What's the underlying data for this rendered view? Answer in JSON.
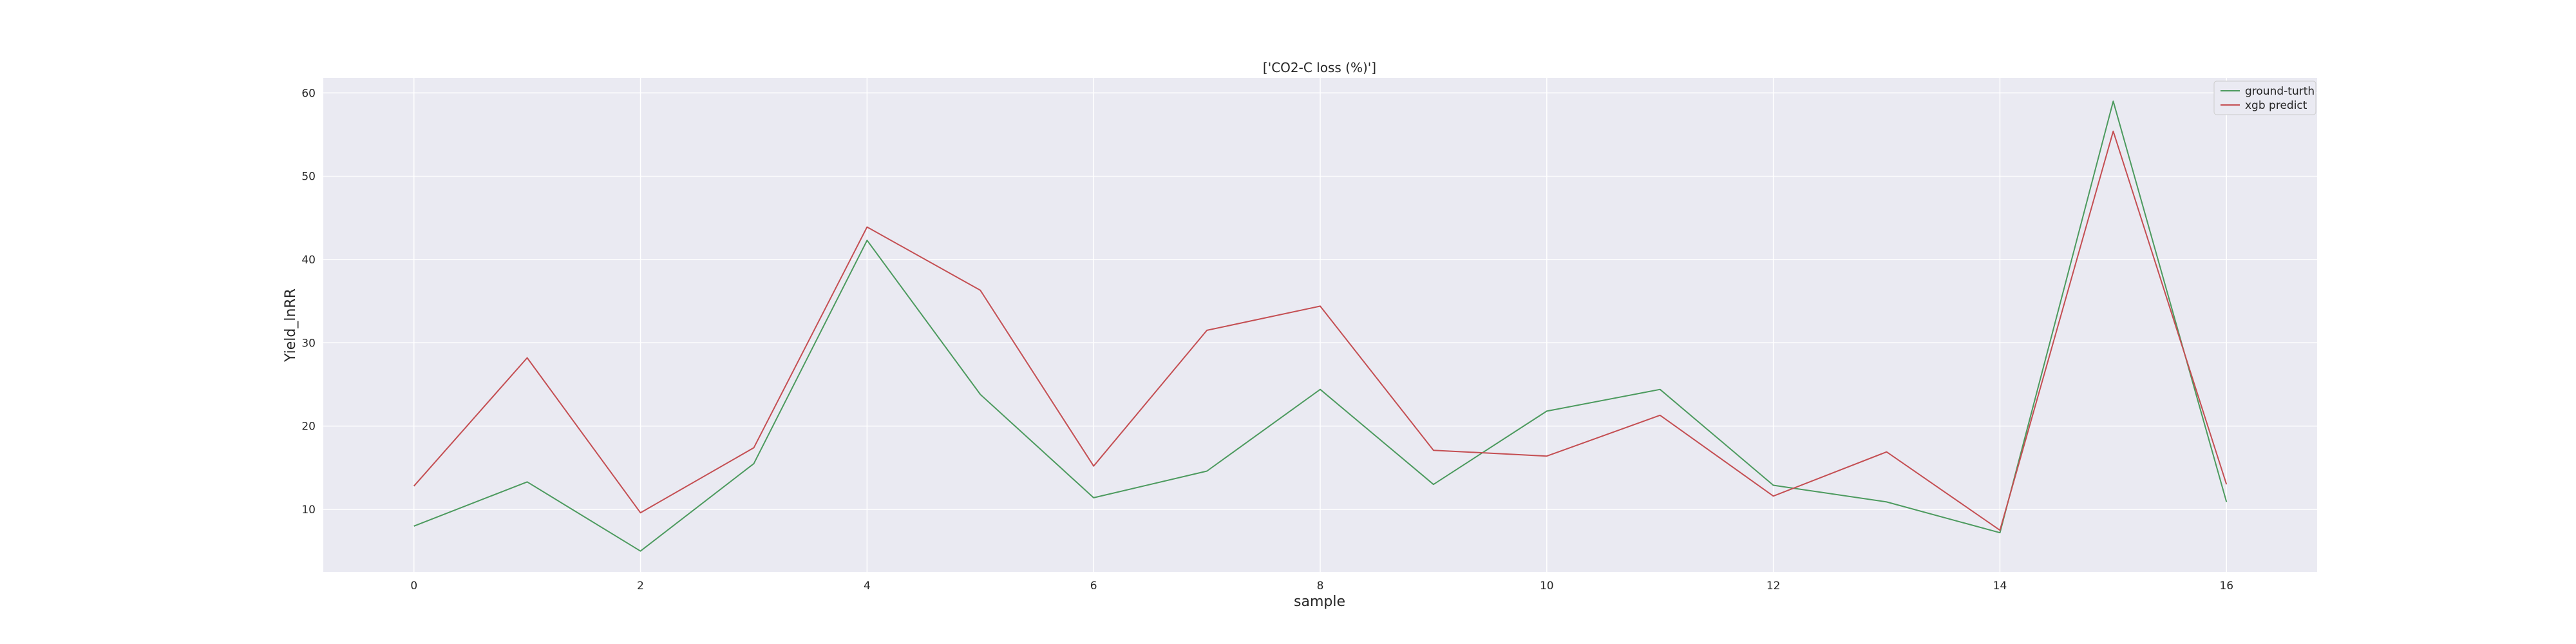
{
  "chart_data": {
    "type": "line",
    "title": "['CO2-C loss (%)']",
    "xlabel": "sample",
    "ylabel": "Yield_lnRR",
    "x": [
      0,
      1,
      2,
      3,
      4,
      5,
      6,
      7,
      8,
      9,
      10,
      11,
      12,
      13,
      14,
      15,
      16
    ],
    "xlim": [
      -0.8,
      16.8
    ],
    "ylim": [
      2.5,
      61.8
    ],
    "xticks": [
      0,
      2,
      4,
      6,
      8,
      10,
      12,
      14,
      16
    ],
    "yticks": [
      10,
      20,
      30,
      40,
      50,
      60
    ],
    "grid": true,
    "legend_position": "top-right",
    "series": [
      {
        "name": "ground-turth",
        "color": "#4c9a5e",
        "values": [
          8.0,
          13.3,
          5.0,
          15.5,
          42.3,
          23.8,
          11.4,
          14.6,
          24.4,
          13.0,
          21.8,
          24.4,
          12.9,
          10.9,
          7.2,
          59.0,
          10.9
        ]
      },
      {
        "name": "xgb predict",
        "color": "#c44e52",
        "values": [
          12.8,
          28.2,
          9.6,
          17.4,
          43.9,
          36.3,
          15.2,
          31.5,
          34.4,
          17.1,
          16.4,
          21.3,
          11.6,
          16.9,
          7.5,
          55.4,
          13.0
        ]
      }
    ]
  }
}
